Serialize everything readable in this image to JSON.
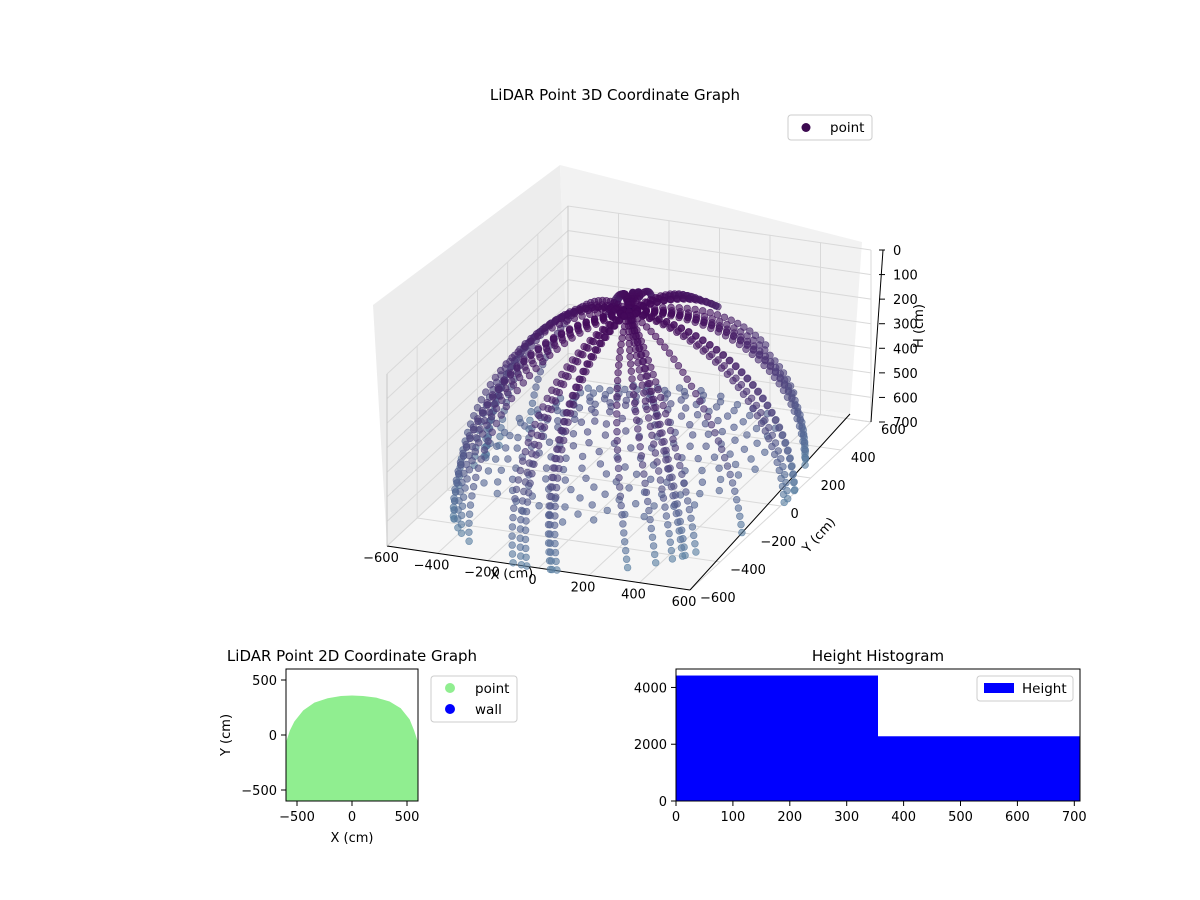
{
  "chart_data": [
    {
      "type": "scatter3d",
      "title": "LiDAR Point 3D Coordinate Graph",
      "xlabel": "X (cm)",
      "ylabel": "Y (cm)",
      "zlabel": "H (cm)",
      "xlim": [
        -600,
        600
      ],
      "ylim": [
        -600,
        600
      ],
      "zlim": [
        0,
        700
      ],
      "z_inverted": true,
      "x_ticks": [
        -600,
        -400,
        -200,
        0,
        200,
        400,
        600
      ],
      "y_ticks": [
        -600,
        -400,
        -200,
        0,
        200,
        400,
        600
      ],
      "z_ticks": [
        0,
        100,
        200,
        300,
        400,
        500,
        600,
        700
      ],
      "grid": true,
      "legend": {
        "position": "top-right",
        "entries": [
          "point"
        ]
      },
      "series": [
        {
          "name": "point",
          "shape": "hemispherical dome of scan lines, apex height ~0 cm, rim height ~700 cm, radius ~600 cm",
          "radius": 600,
          "max_height": 700,
          "colormap_start": "#44095a",
          "colormap_end": "#5a7fa2",
          "marker_color": "#3c0a50"
        }
      ]
    },
    {
      "type": "scatter",
      "title": "LiDAR Point 2D Coordinate Graph",
      "xlabel": "X (cm)",
      "ylabel": "Y (cm)",
      "xlim": [
        -600,
        600
      ],
      "ylim": [
        -600,
        600
      ],
      "x_ticks": [
        -500,
        0,
        500
      ],
      "y_ticks": [
        -500,
        0,
        500
      ],
      "legend": {
        "position": "outside-right",
        "entries": [
          "point",
          "wall"
        ]
      },
      "series": [
        {
          "name": "point",
          "color": "#90ee90",
          "shape": "filled half-disc region, y from -600 to ~350"
        },
        {
          "name": "wall",
          "color": "#0000ff",
          "points": []
        }
      ]
    },
    {
      "type": "histogram",
      "title": "Height Histogram",
      "xlim": [
        0,
        710
      ],
      "ylim": [
        0,
        4650
      ],
      "x_ticks": [
        0,
        100,
        200,
        300,
        400,
        500,
        600,
        700
      ],
      "y_ticks": [
        0,
        2000,
        4000
      ],
      "legend": {
        "position": "top-right",
        "entries": [
          "Height"
        ]
      },
      "bins": [
        {
          "x0": 0,
          "x1": 355,
          "count": 4420
        },
        {
          "x0": 355,
          "x1": 710,
          "count": 2280
        }
      ],
      "color": "#0000ff"
    }
  ]
}
